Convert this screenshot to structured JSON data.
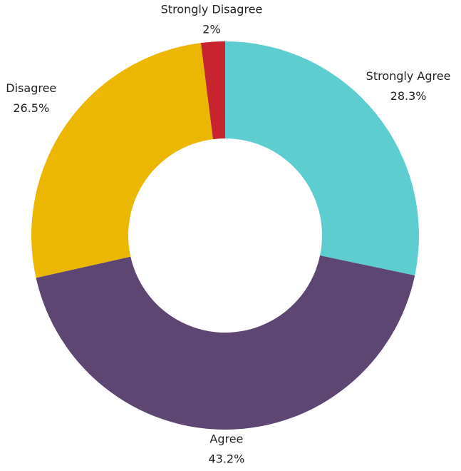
{
  "chart_data": {
    "type": "donut",
    "categories": [
      "Strongly Agree",
      "Agree",
      "Disagree",
      "Strongly Disagree"
    ],
    "values": [
      28.3,
      43.2,
      26.5,
      2
    ],
    "value_labels": [
      "28.3%",
      "43.2%",
      "26.5%",
      "2%"
    ],
    "colors": [
      "#5ecdcf",
      "#5e4672",
      "#ebb700",
      "#c6252f"
    ]
  }
}
